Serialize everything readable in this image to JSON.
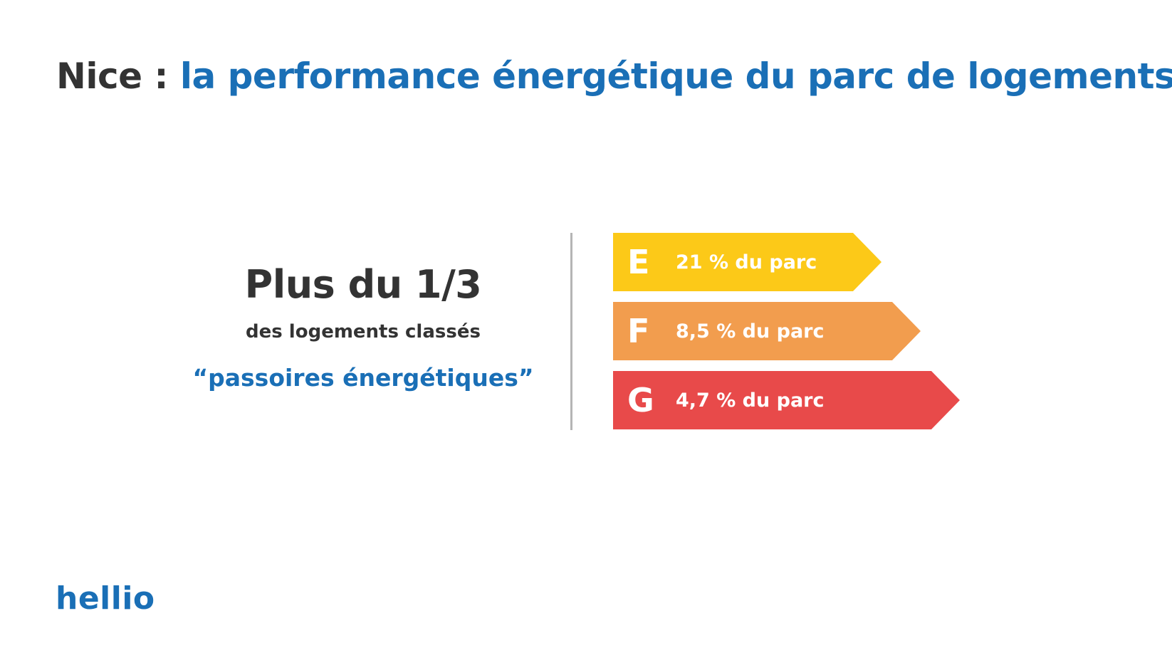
{
  "header": {
    "city": "Nice",
    "separator": " : ",
    "title_rest": "la performance énergétique du parc de logements"
  },
  "summary": {
    "headline": "Plus du 1/3",
    "subtitle": "des logements classés",
    "quote": "“passoires énergétiques”"
  },
  "energy_classes": [
    {
      "letter": "E",
      "label": "21 % du parc",
      "share_percent": 21,
      "color": "#fcc918"
    },
    {
      "letter": "F",
      "label": "8,5 % du parc",
      "share_percent": 8.5,
      "color": "#f29d4e"
    },
    {
      "letter": "G",
      "label": "4,7 % du parc",
      "share_percent": 4.7,
      "color": "#e84a4a"
    }
  ],
  "brand": {
    "logo_text": "hellio",
    "accent_color": "#1a6fb6",
    "text_color": "#333333"
  }
}
